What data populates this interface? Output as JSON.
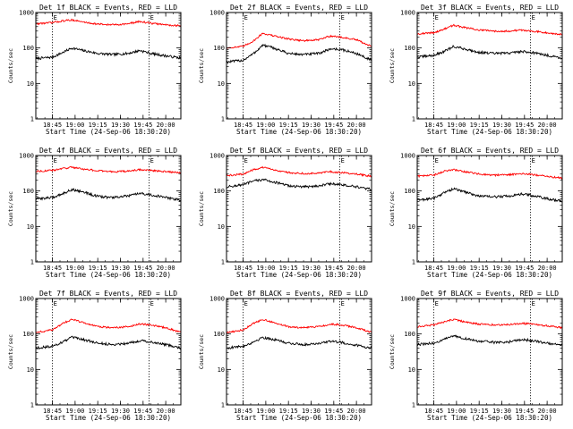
{
  "chart_data": {
    "layout": {
      "rows": 3,
      "cols": 3
    },
    "shared": {
      "type": "line",
      "xlabel": "Start Time (24-Sep-06 18:30:20)",
      "ylabel": "Counts/sec",
      "xlim": [
        "18:34",
        "20:10"
      ],
      "ylim": [
        1,
        1000
      ],
      "yscale": "log",
      "yticks": [
        1,
        10,
        100,
        1000
      ],
      "ytick_labels": [
        "1",
        "10",
        "100",
        "1000"
      ],
      "xticks": [
        "18:45",
        "19:00",
        "19:15",
        "19:30",
        "19:45",
        "20:00"
      ],
      "markers": [
        {
          "time": "18:45",
          "label": "E"
        },
        {
          "time": "19:49",
          "label": "E"
        }
      ],
      "series_colors": {
        "events": "#000000",
        "lld": "#ff0000"
      },
      "noise": {
        "events": 0.035,
        "lld": 0.025
      }
    },
    "panels": [
      {
        "title": "Det 1f BLACK = Events, RED = LLD",
        "series": [
          {
            "color": "#000000",
            "x": [
              "18:34",
              "18:45",
              "18:52",
              "18:58",
              "19:05",
              "19:15",
              "19:25",
              "19:35",
              "19:43",
              "19:50",
              "20:00",
              "20:10"
            ],
            "y": [
              50,
              55,
              75,
              100,
              85,
              70,
              65,
              70,
              85,
              70,
              60,
              52
            ]
          },
          {
            "color": "#ff0000",
            "x": [
              "18:34",
              "18:45",
              "18:52",
              "18:58",
              "19:05",
              "19:15",
              "19:25",
              "19:35",
              "19:43",
              "19:50",
              "20:00",
              "20:10"
            ],
            "y": [
              480,
              520,
              580,
              620,
              540,
              470,
              450,
              480,
              560,
              500,
              450,
              420
            ]
          }
        ]
      },
      {
        "title": "Det 2f BLACK = Events, RED = LLD",
        "series": [
          {
            "color": "#000000",
            "x": [
              "18:34",
              "18:45",
              "18:52",
              "18:58",
              "19:05",
              "19:15",
              "19:25",
              "19:35",
              "19:43",
              "19:50",
              "20:00",
              "20:10"
            ],
            "y": [
              40,
              45,
              70,
              120,
              100,
              70,
              65,
              70,
              95,
              90,
              70,
              45
            ]
          },
          {
            "color": "#ff0000",
            "x": [
              "18:34",
              "18:45",
              "18:52",
              "18:58",
              "19:05",
              "19:15",
              "19:25",
              "19:35",
              "19:43",
              "19:50",
              "20:00",
              "20:10"
            ],
            "y": [
              100,
              110,
              160,
              260,
              220,
              180,
              160,
              170,
              220,
              200,
              170,
              110
            ]
          }
        ]
      },
      {
        "title": "Det 3f BLACK = Events, RED = LLD",
        "series": [
          {
            "color": "#000000",
            "x": [
              "18:34",
              "18:45",
              "18:52",
              "18:58",
              "19:05",
              "19:15",
              "19:25",
              "19:35",
              "19:43",
              "19:50",
              "20:00",
              "20:10"
            ],
            "y": [
              55,
              62,
              80,
              110,
              95,
              75,
              70,
              72,
              80,
              75,
              62,
              52
            ]
          },
          {
            "color": "#ff0000",
            "x": [
              "18:34",
              "18:45",
              "18:52",
              "18:58",
              "19:05",
              "19:15",
              "19:25",
              "19:35",
              "19:43",
              "19:50",
              "20:00",
              "20:10"
            ],
            "y": [
              250,
              270,
              340,
              440,
              380,
              320,
              300,
              300,
              320,
              300,
              270,
              240
            ]
          }
        ]
      },
      {
        "title": "Det 4f BLACK = Events, RED = LLD",
        "series": [
          {
            "color": "#000000",
            "x": [
              "18:34",
              "18:45",
              "18:52",
              "18:58",
              "19:05",
              "19:15",
              "19:25",
              "19:35",
              "19:43",
              "19:50",
              "20:00",
              "20:10"
            ],
            "y": [
              60,
              65,
              85,
              110,
              95,
              70,
              65,
              72,
              85,
              78,
              65,
              55
            ]
          },
          {
            "color": "#ff0000",
            "x": [
              "18:34",
              "18:45",
              "18:52",
              "18:58",
              "19:05",
              "19:15",
              "19:25",
              "19:35",
              "19:43",
              "19:50",
              "20:00",
              "20:10"
            ],
            "y": [
              360,
              380,
              430,
              470,
              420,
              370,
              350,
              360,
              400,
              380,
              350,
              330
            ]
          }
        ]
      },
      {
        "title": "Det 5f BLACK = Events, RED = LLD",
        "series": [
          {
            "color": "#000000",
            "x": [
              "18:34",
              "18:45",
              "18:52",
              "18:58",
              "19:05",
              "19:15",
              "19:25",
              "19:35",
              "19:43",
              "19:50",
              "20:00",
              "20:10"
            ],
            "y": [
              130,
              150,
              190,
              210,
              180,
              140,
              130,
              140,
              160,
              150,
              130,
              110
            ]
          },
          {
            "color": "#ff0000",
            "x": [
              "18:34",
              "18:45",
              "18:52",
              "18:58",
              "19:05",
              "19:15",
              "19:25",
              "19:35",
              "19:43",
              "19:50",
              "20:00",
              "20:10"
            ],
            "y": [
              270,
              300,
              400,
              460,
              400,
              330,
              310,
              320,
              350,
              330,
              300,
              260
            ]
          }
        ]
      },
      {
        "title": "Det 6f BLACK = Events, RED = LLD",
        "series": [
          {
            "color": "#000000",
            "x": [
              "18:34",
              "18:45",
              "18:52",
              "18:58",
              "19:05",
              "19:15",
              "19:25",
              "19:35",
              "19:43",
              "19:50",
              "20:00",
              "20:10"
            ],
            "y": [
              55,
              62,
              90,
              115,
              95,
              72,
              68,
              72,
              82,
              75,
              60,
              52
            ]
          },
          {
            "color": "#ff0000",
            "x": [
              "18:34",
              "18:45",
              "18:52",
              "18:58",
              "19:05",
              "19:15",
              "19:25",
              "19:35",
              "19:43",
              "19:50",
              "20:00",
              "20:10"
            ],
            "y": [
              260,
              280,
              360,
              400,
              350,
              300,
              280,
              290,
              310,
              290,
              260,
              230
            ]
          }
        ]
      },
      {
        "title": "Det 7f BLACK = Events, RED = LLD",
        "series": [
          {
            "color": "#000000",
            "x": [
              "18:34",
              "18:45",
              "18:52",
              "18:58",
              "19:05",
              "19:15",
              "19:25",
              "19:35",
              "19:43",
              "19:50",
              "20:00",
              "20:10"
            ],
            "y": [
              40,
              45,
              60,
              80,
              70,
              55,
              50,
              55,
              65,
              60,
              50,
              40
            ]
          },
          {
            "color": "#ff0000",
            "x": [
              "18:34",
              "18:45",
              "18:52",
              "18:58",
              "19:05",
              "19:15",
              "19:25",
              "19:35",
              "19:43",
              "19:50",
              "20:00",
              "20:10"
            ],
            "y": [
              110,
              130,
              200,
              260,
              210,
              160,
              150,
              160,
              190,
              180,
              150,
              110
            ]
          }
        ]
      },
      {
        "title": "Det 8f BLACK = Events, RED = LLD",
        "series": [
          {
            "color": "#000000",
            "x": [
              "18:34",
              "18:45",
              "18:52",
              "18:58",
              "19:05",
              "19:15",
              "19:25",
              "19:35",
              "19:43",
              "19:50",
              "20:00",
              "20:10"
            ],
            "y": [
              40,
              45,
              60,
              80,
              70,
              55,
              50,
              55,
              62,
              58,
              48,
              40
            ]
          },
          {
            "color": "#ff0000",
            "x": [
              "18:34",
              "18:45",
              "18:52",
              "18:58",
              "19:05",
              "19:15",
              "19:25",
              "19:35",
              "19:43",
              "19:50",
              "20:00",
              "20:10"
            ],
            "y": [
              110,
              130,
              200,
              260,
              210,
              160,
              150,
              160,
              190,
              180,
              150,
              110
            ]
          }
        ]
      },
      {
        "title": "Det 9f BLACK = Events, RED = LLD",
        "series": [
          {
            "color": "#000000",
            "x": [
              "18:34",
              "18:45",
              "18:52",
              "18:58",
              "19:05",
              "19:15",
              "19:25",
              "19:35",
              "19:43",
              "19:50",
              "20:00",
              "20:10"
            ],
            "y": [
              50,
              55,
              70,
              90,
              75,
              62,
              58,
              60,
              70,
              65,
              55,
              48
            ]
          },
          {
            "color": "#ff0000",
            "x": [
              "18:34",
              "18:45",
              "18:52",
              "18:58",
              "19:05",
              "19:15",
              "19:25",
              "19:35",
              "19:43",
              "19:50",
              "20:00",
              "20:10"
            ],
            "y": [
              160,
              180,
              220,
              260,
              220,
              190,
              180,
              185,
              200,
              190,
              170,
              150
            ]
          }
        ]
      }
    ]
  }
}
